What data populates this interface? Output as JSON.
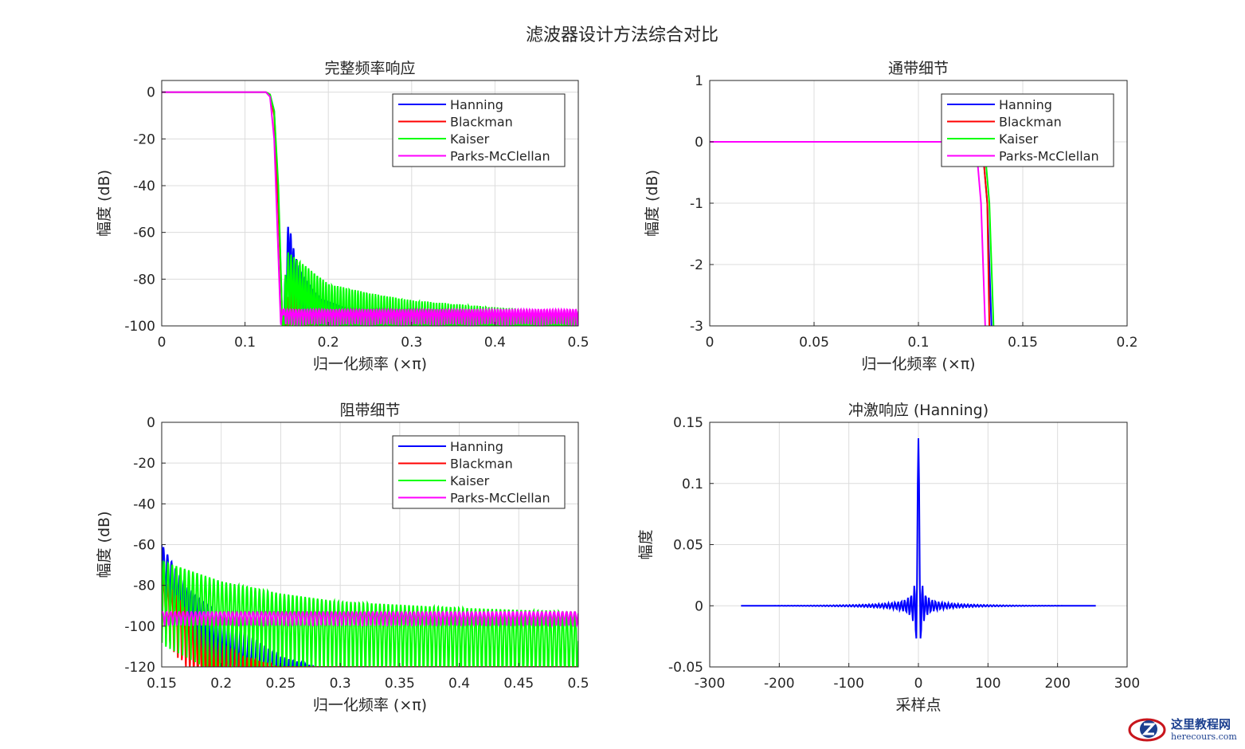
{
  "figure_title": "滤波器设计方法综合对比",
  "colors": {
    "Hanning": "#0000ff",
    "Blackman": "#ff0000",
    "Kaiser": "#00ff00",
    "Parks-McClellan": "#ff00ff"
  },
  "chart_data": [
    {
      "type": "line",
      "title": "完整频率响应",
      "xlabel": "归一化频率 (×π)",
      "ylabel": "幅度 (dB)",
      "xlim": [
        0,
        0.5
      ],
      "ylim": [
        -100,
        5
      ],
      "xticks": [
        0,
        0.1,
        0.2,
        0.3,
        0.4,
        0.5
      ],
      "xtick_labels": [
        "0",
        "0.1",
        "0.2",
        "0.3",
        "0.4",
        "0.5"
      ],
      "yticks": [
        0,
        -20,
        -40,
        -60,
        -80,
        -100
      ],
      "ytick_labels": [
        "0",
        "-20",
        "-40",
        "-60",
        "-80",
        "-100"
      ],
      "grid": true,
      "legend": "top-right",
      "series": [
        {
          "name": "Hanning",
          "points": [
            [
              0,
              0
            ],
            [
              0.125,
              0
            ],
            [
              0.13,
              -1
            ],
            [
              0.135,
              -8
            ],
            [
              0.14,
              -45
            ],
            [
              0.145,
              -100
            ],
            [
              0.152,
              -55
            ],
            [
              0.16,
              -70
            ],
            [
              0.17,
              -78
            ],
            [
              0.19,
              -88
            ],
            [
              0.25,
              -96
            ],
            [
              0.3,
              -100
            ],
            [
              0.5,
              -100
            ]
          ]
        },
        {
          "name": "Blackman",
          "points": [
            [
              0,
              0
            ],
            [
              0.125,
              0
            ],
            [
              0.13,
              -1
            ],
            [
              0.135,
              -10
            ],
            [
              0.14,
              -50
            ],
            [
              0.145,
              -100
            ],
            [
              0.155,
              -82
            ],
            [
              0.17,
              -95
            ],
            [
              0.2,
              -100
            ],
            [
              0.5,
              -100
            ]
          ]
        },
        {
          "name": "Kaiser",
          "points": [
            [
              0,
              0
            ],
            [
              0.125,
              0
            ],
            [
              0.13,
              -1
            ],
            [
              0.135,
              -8
            ],
            [
              0.14,
              -40
            ],
            [
              0.145,
              -100
            ],
            [
              0.15,
              -68
            ],
            [
              0.2,
              -82
            ],
            [
              0.25,
              -86
            ],
            [
              0.3,
              -89
            ],
            [
              0.4,
              -92
            ],
            [
              0.5,
              -94
            ]
          ]
        },
        {
          "name": "Parks-McClellan",
          "points": [
            [
              0,
              0
            ],
            [
              0.125,
              0
            ],
            [
              0.13,
              -2
            ],
            [
              0.135,
              -20
            ],
            [
              0.14,
              -70
            ],
            [
              0.143,
              -100
            ],
            [
              0.145,
              -93
            ],
            [
              0.5,
              -93
            ]
          ]
        }
      ]
    },
    {
      "type": "line",
      "title": "通带细节",
      "xlabel": "归一化频率 (×π)",
      "ylabel": "幅度 (dB)",
      "xlim": [
        0,
        0.2
      ],
      "ylim": [
        -3,
        1
      ],
      "xticks": [
        0,
        0.05,
        0.1,
        0.15,
        0.2
      ],
      "xtick_labels": [
        "0",
        "0.05",
        "0.1",
        "0.15",
        "0.2"
      ],
      "yticks": [
        1,
        0,
        -1,
        -2,
        -3
      ],
      "ytick_labels": [
        "1",
        "0",
        "-1",
        "-2",
        "-3"
      ],
      "grid": true,
      "legend": "top-right",
      "series": [
        {
          "name": "Hanning",
          "points": [
            [
              0,
              0
            ],
            [
              0.128,
              0
            ],
            [
              0.131,
              -0.2
            ],
            [
              0.133,
              -1
            ],
            [
              0.135,
              -3
            ]
          ]
        },
        {
          "name": "Blackman",
          "points": [
            [
              0,
              0
            ],
            [
              0.128,
              0
            ],
            [
              0.131,
              -0.2
            ],
            [
              0.133,
              -1
            ],
            [
              0.134,
              -3
            ]
          ]
        },
        {
          "name": "Kaiser",
          "points": [
            [
              0,
              0
            ],
            [
              0.129,
              0
            ],
            [
              0.132,
              -0.2
            ],
            [
              0.134,
              -1
            ],
            [
              0.136,
              -3
            ]
          ]
        },
        {
          "name": "Parks-McClellan",
          "points": [
            [
              0,
              0
            ],
            [
              0.125,
              0
            ],
            [
              0.128,
              -0.2
            ],
            [
              0.13,
              -1
            ],
            [
              0.132,
              -3
            ]
          ]
        }
      ]
    },
    {
      "type": "line",
      "title": "阻带细节",
      "xlabel": "归一化频率 (×π)",
      "ylabel": "幅度 (dB)",
      "xlim": [
        0.15,
        0.5
      ],
      "ylim": [
        -120,
        0
      ],
      "xticks": [
        0.15,
        0.2,
        0.25,
        0.3,
        0.35,
        0.4,
        0.45,
        0.5
      ],
      "xtick_labels": [
        "0.15",
        "0.2",
        "0.25",
        "0.3",
        "0.35",
        "0.4",
        "0.45",
        "0.5"
      ],
      "yticks": [
        0,
        -20,
        -40,
        -60,
        -80,
        -100,
        -120
      ],
      "ytick_labels": [
        "0",
        "-20",
        "-40",
        "-60",
        "-80",
        "-100",
        "-120"
      ],
      "grid": true,
      "legend": "top-right",
      "series": [
        {
          "name": "Hanning",
          "points": [
            [
              0.15,
              -60
            ],
            [
              0.17,
              -80
            ],
            [
              0.2,
              -95
            ],
            [
              0.25,
              -115
            ],
            [
              0.28,
              -120
            ]
          ]
        },
        {
          "name": "Blackman",
          "points": [
            [
              0.15,
              -75
            ],
            [
              0.18,
              -100
            ],
            [
              0.22,
              -115
            ],
            [
              0.25,
              -120
            ]
          ]
        },
        {
          "name": "Kaiser",
          "points": [
            [
              0.15,
              -68
            ],
            [
              0.2,
              -78
            ],
            [
              0.25,
              -84
            ],
            [
              0.3,
              -88
            ],
            [
              0.4,
              -91
            ],
            [
              0.5,
              -93
            ]
          ]
        },
        {
          "name": "Parks-McClellan",
          "points": [
            [
              0.15,
              -93
            ],
            [
              0.5,
              -93
            ]
          ]
        }
      ]
    },
    {
      "type": "line",
      "title": "冲激响应 (Hanning)",
      "xlabel": "采样点",
      "ylabel": "幅度",
      "xlim": [
        -300,
        300
      ],
      "ylim": [
        -0.05,
        0.15
      ],
      "xticks": [
        -300,
        -200,
        -100,
        0,
        100,
        200,
        300
      ],
      "xtick_labels": [
        "-300",
        "-200",
        "-100",
        "0",
        "100",
        "200",
        "300"
      ],
      "yticks": [
        0.15,
        0.1,
        0.05,
        0,
        -0.05
      ],
      "ytick_labels": [
        "0.15",
        "0.1",
        "0.05",
        "0",
        "-0.05"
      ],
      "grid": true,
      "series": [
        {
          "name": "Hanning",
          "sample_range": [
            -255,
            255
          ],
          "peak": 0.137,
          "first_minimum": -0.029,
          "second_maximum": 0.017
        }
      ]
    }
  ]
}
